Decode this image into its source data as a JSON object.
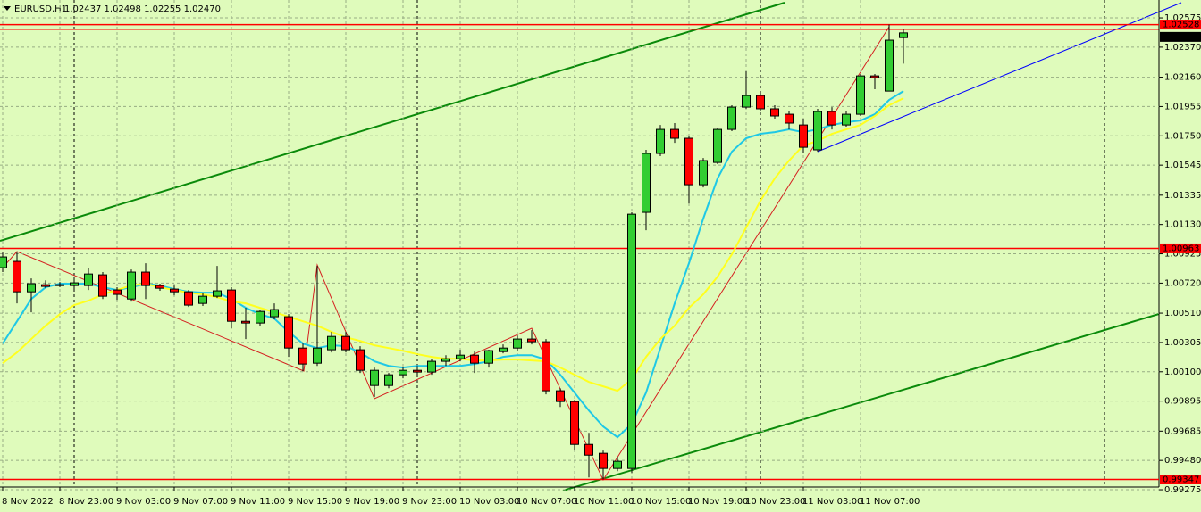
{
  "chart_data": {
    "type": "candlestick",
    "title": "EURUSD,H1",
    "title_ohlc": "1.02437 1.02498 1.02255 1.02470",
    "categories": [
      "8 Nov 2022",
      null,
      null,
      null,
      "8 Nov 23:00",
      null,
      null,
      null,
      "9 Nov 03:00",
      null,
      null,
      null,
      "9 Nov 07:00",
      null,
      null,
      null,
      "9 Nov 11:00",
      null,
      null,
      null,
      "9 Nov 15:00",
      null,
      null,
      null,
      "9 Nov 19:00",
      null,
      null,
      null,
      "9 Nov 23:00",
      null,
      null,
      null,
      "10 Nov 03:00",
      null,
      null,
      null,
      "10 Nov 07:00",
      null,
      null,
      null,
      "10 Nov 11:00",
      null,
      null,
      null,
      "10 Nov 15:00",
      null,
      null,
      null,
      "10 Nov 19:00",
      null,
      null,
      null,
      "10 Nov 23:00",
      null,
      null,
      null,
      "11 Nov 03:00",
      null,
      null,
      null,
      "11 Nov 07:00",
      null,
      null,
      null
    ],
    "open": [
      1.00828,
      1.00872,
      1.00659,
      1.00709,
      1.00709,
      1.00703,
      1.00703,
      1.00778,
      1.00672,
      1.00609,
      1.00797,
      1.00703,
      1.00678,
      1.00659,
      1.00578,
      1.00628,
      1.00672,
      1.00453,
      1.00441,
      1.00485,
      1.00485,
      1.00266,
      1.0016,
      1.00254,
      1.00347,
      1.00254,
      1.00004,
      1.00004,
      1.00079,
      1.0011,
      1.00098,
      1.00173,
      1.00191,
      1.00216,
      1.0016,
      1.00241,
      1.00266,
      1.00329,
      1.0031,
      0.99967,
      0.99892,
      0.99592,
      0.9953,
      0.99424,
      0.99424,
      1.01215,
      1.01627,
      1.01795,
      1.01733,
      1.01408,
      1.01564,
      1.01795,
      1.01951,
      1.02032,
      1.01939,
      1.01901,
      1.01826,
      1.01652,
      1.0192,
      1.01826,
      1.01901,
      1.02169,
      1.02063,
      1.02437
    ],
    "high": [
      1.00934,
      1.00934,
      1.00753,
      1.0074,
      1.00728,
      1.00765,
      1.00828,
      1.00797,
      1.00691,
      1.00815,
      1.00859,
      1.00716,
      1.00703,
      1.00672,
      1.00653,
      1.0084,
      1.00691,
      1.00547,
      1.00535,
      1.00578,
      1.00503,
      1.00297,
      1.0084,
      1.00379,
      1.00379,
      1.00279,
      1.00129,
      1.00092,
      1.00129,
      1.00141,
      1.00191,
      1.00216,
      1.00254,
      1.00241,
      1.00254,
      1.00291,
      1.00354,
      1.00391,
      1.00329,
      0.99985,
      0.99904,
      0.99673,
      0.99549,
      0.99505,
      1.01215,
      1.01652,
      1.01826,
      1.01839,
      1.01751,
      1.01595,
      1.01808,
      1.01964,
      1.02201,
      1.02057,
      1.01964,
      1.0192,
      1.0187,
      1.01939,
      1.01951,
      1.0192,
      1.02182,
      1.02182,
      1.02528,
      1.02498
    ],
    "low": [
      1.00797,
      1.00578,
      1.00516,
      1.00684,
      1.00691,
      1.00672,
      1.00672,
      1.00609,
      1.00603,
      1.00591,
      1.00609,
      1.00666,
      1.00634,
      1.00553,
      1.0056,
      1.00616,
      1.00404,
      1.00329,
      1.00422,
      1.00466,
      1.00204,
      1.00104,
      1.00141,
      1.00235,
      1.00235,
      1.00092,
      0.99923,
      0.99985,
      1.00054,
      1.00079,
      1.00079,
      1.00141,
      1.00173,
      1.00092,
      1.00129,
      1.00229,
      1.00248,
      1.00291,
      0.99942,
      0.99854,
      0.99549,
      0.99361,
      0.99347,
      0.99405,
      0.99393,
      1.0109,
      1.01608,
      1.01701,
      1.01277,
      1.01389,
      1.01552,
      1.01783,
      1.01939,
      1.0192,
      1.0187,
      1.01795,
      1.01627,
      1.01639,
      1.01795,
      1.01814,
      1.01889,
      1.02076,
      1.02063,
      1.02255
    ],
    "close": [
      1.00903,
      1.00659,
      1.00716,
      1.00697,
      1.00703,
      1.00722,
      1.00784,
      1.00628,
      1.00641,
      1.00797,
      1.00703,
      1.00684,
      1.00659,
      1.00566,
      1.00628,
      1.00666,
      1.00453,
      1.00441,
      1.00522,
      1.00535,
      1.00266,
      1.00154,
      1.00266,
      1.00347,
      1.00254,
      1.0011,
      1.0011,
      1.00079,
      1.0011,
      1.00098,
      1.00173,
      1.00191,
      1.00216,
      1.0016,
      1.00248,
      1.00266,
      1.00329,
      1.0031,
      0.99967,
      0.99892,
      0.99592,
      0.99517,
      0.99424,
      0.99474,
      1.01202,
      1.01627,
      1.01795,
      1.01733,
      1.01408,
      1.01577,
      1.01795,
      1.01951,
      1.02032,
      1.01939,
      1.01889,
      1.01839,
      1.0167,
      1.0192,
      1.01826,
      1.01901,
      1.02169,
      1.02157,
      1.02419,
      1.0247
    ],
    "up_color": "#32cd32",
    "down_color": "#ff0000",
    "overlays": [
      {
        "color": "#1ec8e6",
        "values": [
          1.00297,
          1.00453,
          1.00609,
          1.00691,
          1.00716,
          1.00716,
          1.00716,
          1.00691,
          1.00672,
          1.00691,
          1.00716,
          1.00703,
          1.00678,
          1.00659,
          1.00653,
          1.00653,
          1.00609,
          1.00547,
          1.00503,
          1.00472,
          1.00379,
          1.00297,
          1.00266,
          1.00285,
          1.00279,
          1.00235,
          1.00173,
          1.00141,
          1.00129,
          1.00141,
          1.00141,
          1.00141,
          1.00141,
          1.00154,
          1.00173,
          1.00204,
          1.00216,
          1.00216,
          1.00185,
          1.00079,
          0.99954,
          0.99829,
          0.99717,
          0.99642,
          0.99736,
          0.99954,
          1.00266,
          1.00578,
          1.00859,
          1.01171,
          1.01452,
          1.01639,
          1.01733,
          1.01764,
          1.01776,
          1.01795,
          1.01776,
          1.01795,
          1.01826,
          1.01845,
          1.01857,
          1.01901,
          1.02001,
          1.02063
        ]
      },
      {
        "color": "#ffff1e",
        "values": [
          1.0016,
          1.00235,
          1.00329,
          1.00422,
          1.00503,
          1.00566,
          1.00597,
          1.00641,
          1.00672,
          1.00703,
          1.00716,
          1.00691,
          1.00672,
          1.00653,
          1.00641,
          1.00622,
          1.00591,
          1.00578,
          1.00547,
          1.00516,
          1.00485,
          1.00453,
          1.00422,
          1.00379,
          1.00341,
          1.00316,
          1.00285,
          1.00266,
          1.00247,
          1.00223,
          1.00204,
          1.00191,
          1.00191,
          1.00179,
          1.00179,
          1.00185,
          1.00185,
          1.00179,
          1.00173,
          1.00129,
          1.00079,
          1.00029,
          0.99998,
          0.99967,
          1.00048,
          1.00204,
          1.00329,
          1.00422,
          1.00547,
          1.00641,
          1.00765,
          1.00921,
          1.01109,
          1.01296,
          1.01452,
          1.01577,
          1.01683,
          1.01714,
          1.01764,
          1.01795,
          1.01826,
          1.01889,
          1.01964,
          1.02013
        ]
      }
    ],
    "price_lines": [
      {
        "value": 1.02528,
        "color": "#ff0000"
      },
      {
        "value": 1.00963,
        "color": "#ff0000"
      },
      {
        "value": 0.99347,
        "color": "#ff0000"
      }
    ],
    "current_price": {
      "value": 1.0247,
      "label": "1.02470"
    },
    "ylim": [
      0.99269,
      1.027
    ],
    "yticks": [
      1.02575,
      {
        "value": 1.0237,
        "label": "1.02370"
      },
      {
        "value": 1.0216,
        "label": "1.02160"
      },
      1.01955,
      {
        "value": 1.0175,
        "label": "1.01750"
      },
      1.01545,
      1.01335,
      {
        "value": 1.0113,
        "label": "1.01130"
      },
      1.00925,
      {
        "value": 1.0072,
        "label": "1.00720"
      },
      {
        "value": 1.0051,
        "label": "1.00510"
      },
      1.00305,
      {
        "value": 1.001,
        "label": "1.00100"
      },
      0.99895,
      0.99685,
      {
        "value": 0.9948,
        "label": "0.99480"
      },
      0.99275
    ],
    "grid": true
  }
}
